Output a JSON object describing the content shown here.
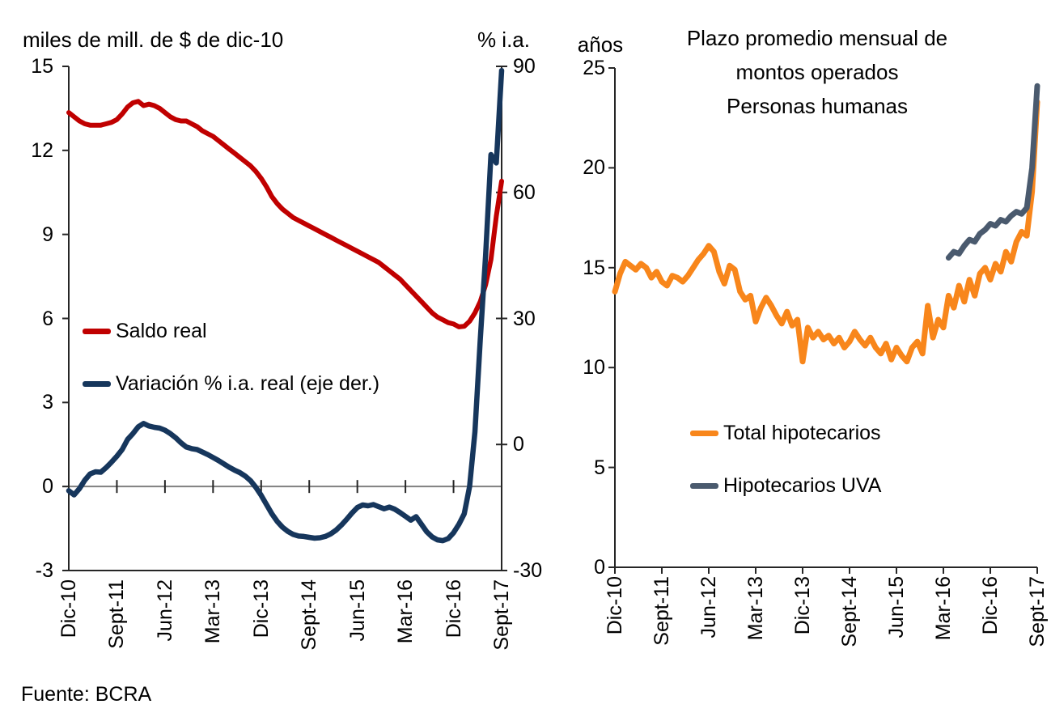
{
  "page": {
    "source_note": "Fuente: BCRA"
  },
  "chart_data": [
    {
      "type": "line",
      "title": "miles de mill. de $ de dic-10",
      "right_axis_label": "% i.a.",
      "x_tick_labels": [
        "Dic-10",
        "Sept-11",
        "Jun-12",
        "Mar-13",
        "Dic-13",
        "Sept-14",
        "Jun-15",
        "Mar-16",
        "Dic-16",
        "Sept-17"
      ],
      "x_tick_step_months": 9,
      "months_total": 82,
      "left_axis": {
        "min": -3,
        "max": 15,
        "ticks": [
          15,
          12,
          9,
          6,
          3,
          0,
          -3
        ]
      },
      "right_axis": {
        "min": -30,
        "max": 90,
        "ticks": [
          90,
          60,
          30,
          0,
          -30
        ]
      },
      "grid": "zero-line-only",
      "legend_position": "inside-left-middle",
      "series": [
        {
          "name": "Saldo real",
          "axis": "left",
          "color": "#C00000",
          "values": [
            13.35,
            13.2,
            13.05,
            12.95,
            12.9,
            12.9,
            12.9,
            12.95,
            13.0,
            13.1,
            13.3,
            13.55,
            13.7,
            13.75,
            13.6,
            13.65,
            13.6,
            13.5,
            13.35,
            13.2,
            13.1,
            13.05,
            13.05,
            12.95,
            12.85,
            12.7,
            12.6,
            12.5,
            12.35,
            12.2,
            12.05,
            11.9,
            11.75,
            11.6,
            11.45,
            11.25,
            11.0,
            10.7,
            10.35,
            10.1,
            9.9,
            9.75,
            9.6,
            9.5,
            9.4,
            9.3,
            9.2,
            9.1,
            9.0,
            8.9,
            8.8,
            8.7,
            8.6,
            8.5,
            8.4,
            8.3,
            8.2,
            8.1,
            8.0,
            7.85,
            7.7,
            7.55,
            7.4,
            7.2,
            7.0,
            6.8,
            6.6,
            6.4,
            6.2,
            6.05,
            5.95,
            5.85,
            5.8,
            5.7,
            5.72,
            5.9,
            6.2,
            6.6,
            7.2,
            8.1,
            9.65,
            10.9
          ]
        },
        {
          "name": "Variación % i.a. real (eje der.)",
          "axis": "right",
          "color": "#16365C",
          "values": [
            -11,
            -12,
            -10.5,
            -8.5,
            -7,
            -6.5,
            -6.6,
            -5.5,
            -4.2,
            -2.8,
            -1.2,
            1.2,
            2.6,
            4.2,
            5.0,
            4.4,
            4.1,
            3.9,
            3.4,
            2.6,
            1.6,
            0.4,
            -0.6,
            -1.0,
            -1.2,
            -1.8,
            -2.4,
            -3.1,
            -3.8,
            -4.6,
            -5.4,
            -6.1,
            -6.7,
            -7.5,
            -8.6,
            -10.2,
            -12.1,
            -14.3,
            -16.5,
            -18.3,
            -19.7,
            -20.7,
            -21.4,
            -21.8,
            -21.9,
            -22.1,
            -22.3,
            -22.2,
            -21.9,
            -21.3,
            -20.4,
            -19.2,
            -17.8,
            -16.3,
            -15.0,
            -14.4,
            -14.6,
            -14.3,
            -14.8,
            -15.3,
            -14.9,
            -15.4,
            -16.2,
            -17.1,
            -18.0,
            -17.2,
            -19.0,
            -20.8,
            -22.0,
            -22.7,
            -22.9,
            -22.4,
            -21.0,
            -19.0,
            -16.5,
            -10.0,
            3.0,
            25.0,
            45.0,
            69.0,
            67.0,
            89.0
          ]
        }
      ]
    },
    {
      "type": "line",
      "title": "Plazo promedio mensual de montos operados Personas humanas",
      "title_lines": [
        "Plazo promedio mensual de",
        "montos operados",
        "Personas humanas"
      ],
      "y_axis_label": "años",
      "y_axis": {
        "min": 0,
        "max": 25,
        "ticks": [
          25,
          20,
          15,
          10,
          5,
          0
        ]
      },
      "x_tick_labels": [
        "Dic-10",
        "Sept-11",
        "Jun-12",
        "Mar-13",
        "Dic-13",
        "Sept-14",
        "Jun-15",
        "Mar-16",
        "Dic-16",
        "Sept-17"
      ],
      "x_tick_step_months": 9,
      "months_total": 82,
      "grid": "off",
      "legend_position": "inside-center-bottom",
      "series": [
        {
          "name": "Total hipotecarios",
          "color": "#F8861B",
          "start_index": 0,
          "values": [
            13.8,
            14.7,
            15.3,
            15.1,
            14.9,
            15.2,
            15.0,
            14.5,
            14.8,
            14.3,
            14.1,
            14.6,
            14.5,
            14.3,
            14.6,
            15.0,
            15.4,
            15.7,
            16.1,
            15.8,
            14.8,
            14.2,
            15.1,
            14.9,
            13.8,
            13.4,
            13.6,
            12.3,
            13.0,
            13.5,
            13.1,
            12.6,
            12.2,
            12.8,
            12.1,
            12.4,
            10.3,
            12.0,
            11.5,
            11.8,
            11.4,
            11.6,
            11.2,
            11.5,
            11.0,
            11.3,
            11.8,
            11.4,
            11.1,
            11.5,
            11.0,
            10.7,
            11.2,
            10.4,
            11.0,
            10.6,
            10.3,
            11.0,
            11.3,
            10.7,
            13.1,
            11.5,
            12.4,
            12.0,
            13.6,
            13.0,
            14.1,
            13.3,
            14.4,
            13.6,
            14.7,
            15.0,
            14.4,
            15.2,
            14.8,
            15.8,
            15.3,
            16.3,
            16.8,
            16.6,
            18.8,
            23.3
          ]
        },
        {
          "name": "Hipotecarios UVA",
          "color": "#4A5A6E",
          "start_index": 64,
          "values": [
            15.5,
            15.8,
            15.7,
            16.1,
            16.4,
            16.3,
            16.7,
            16.9,
            17.2,
            17.1,
            17.4,
            17.3,
            17.6,
            17.8,
            17.7,
            18.0,
            20.0,
            24.1
          ]
        }
      ]
    }
  ]
}
